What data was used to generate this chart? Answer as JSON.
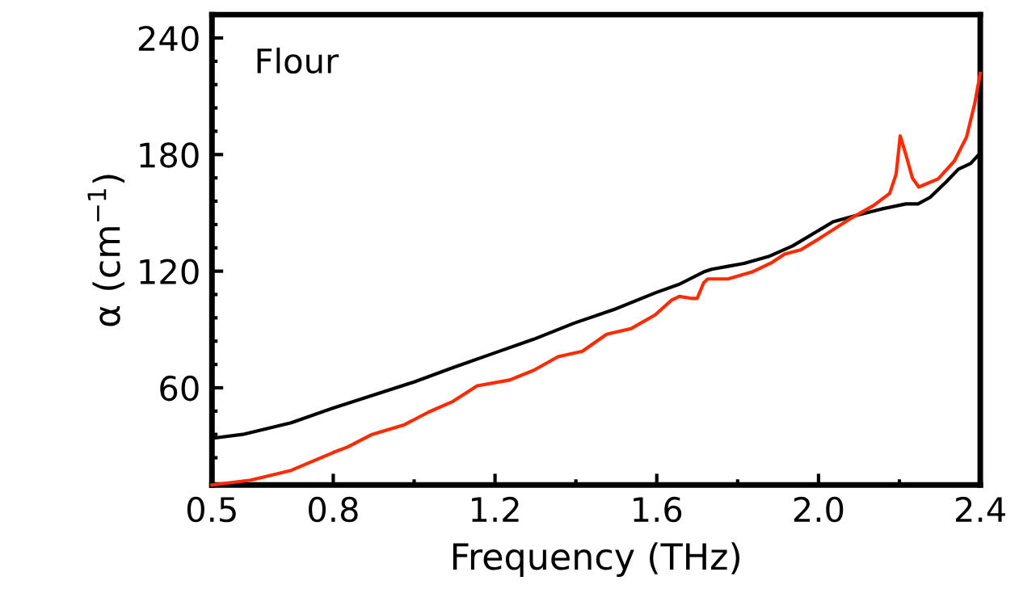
{
  "chart_data": {
    "type": "line",
    "xlabel": "Frequency (THz)",
    "ylabel": "α (cm$^{−1}$)",
    "annotations": [
      "Flour"
    ],
    "xlim": [
      0.5,
      2.4
    ],
    "ylim": [
      10,
      252
    ],
    "xticks": [
      0.5,
      0.8,
      {
        "value": 1.0,
        "label": null
      },
      1.2,
      {
        "value": 1.4,
        "label": null
      },
      1.6,
      {
        "value": 1.8,
        "label": null
      },
      {
        "value": 2.0,
        "label": "2.0"
      },
      {
        "value": 2.2,
        "label": null
      },
      2.4
    ],
    "yticks": [
      {
        "value": 24,
        "label": null
      },
      {
        "value": 36,
        "label": null
      },
      {
        "value": 48,
        "label": null
      },
      60,
      {
        "value": 72,
        "label": null
      },
      {
        "value": 84,
        "label": null
      },
      {
        "value": 96,
        "label": null
      },
      {
        "value": 108,
        "label": null
      },
      120,
      {
        "value": 132,
        "label": null
      },
      {
        "value": 144,
        "label": null
      },
      {
        "value": 156,
        "label": null
      },
      {
        "value": 168,
        "label": null
      },
      180,
      {
        "value": 192,
        "label": null
      },
      {
        "value": 204,
        "label": null
      },
      {
        "value": 216,
        "label": null
      },
      {
        "value": 228,
        "label": null
      },
      240
    ],
    "grid": false,
    "legend": false,
    "series": [
      {
        "color": "#000000",
        "x": [
          0.5,
          0.576,
          0.696,
          0.8,
          0.896,
          1.0,
          1.096,
          1.2,
          1.296,
          1.396,
          1.496,
          1.598,
          1.656,
          1.716,
          1.736,
          1.776,
          1.816,
          1.876,
          1.936,
          1.996,
          2.036,
          2.096,
          2.156,
          2.216,
          2.246,
          2.276,
          2.316,
          2.346,
          2.376,
          2.4
        ],
        "values": [
          34,
          36,
          42,
          49.6,
          56,
          63,
          70.4,
          78,
          85,
          93.3,
          100.4,
          109,
          113.3,
          119.6,
          121,
          122.5,
          124,
          127.5,
          133,
          140.4,
          145.4,
          148.8,
          152,
          154.6,
          154.6,
          158,
          166,
          172.5,
          175.4,
          180.8
        ]
      },
      {
        "color": "#ff2a00",
        "x": [
          0.5,
          0.596,
          0.696,
          0.8,
          0.836,
          0.896,
          0.976,
          1.036,
          1.096,
          1.156,
          1.236,
          1.296,
          1.356,
          1.416,
          1.476,
          1.536,
          1.596,
          1.636,
          1.656,
          1.686,
          1.7,
          1.716,
          1.726,
          1.776,
          1.836,
          1.886,
          1.916,
          1.956,
          1.996,
          2.076,
          2.136,
          2.176,
          2.192,
          2.202,
          2.216,
          2.232,
          2.248,
          2.296,
          2.336,
          2.366,
          2.386,
          2.4
        ],
        "values": [
          10,
          12.5,
          17.5,
          26.7,
          29.6,
          36,
          41,
          47.5,
          53,
          61,
          64,
          69,
          76,
          78.8,
          87.5,
          90.4,
          97.5,
          105,
          107,
          106,
          106,
          114,
          116,
          116,
          119.6,
          124.6,
          128.8,
          131,
          136,
          146.7,
          153.8,
          160,
          170,
          189.6,
          180,
          168,
          163.3,
          167.5,
          176.7,
          189,
          206,
          221.7
        ]
      }
    ]
  }
}
